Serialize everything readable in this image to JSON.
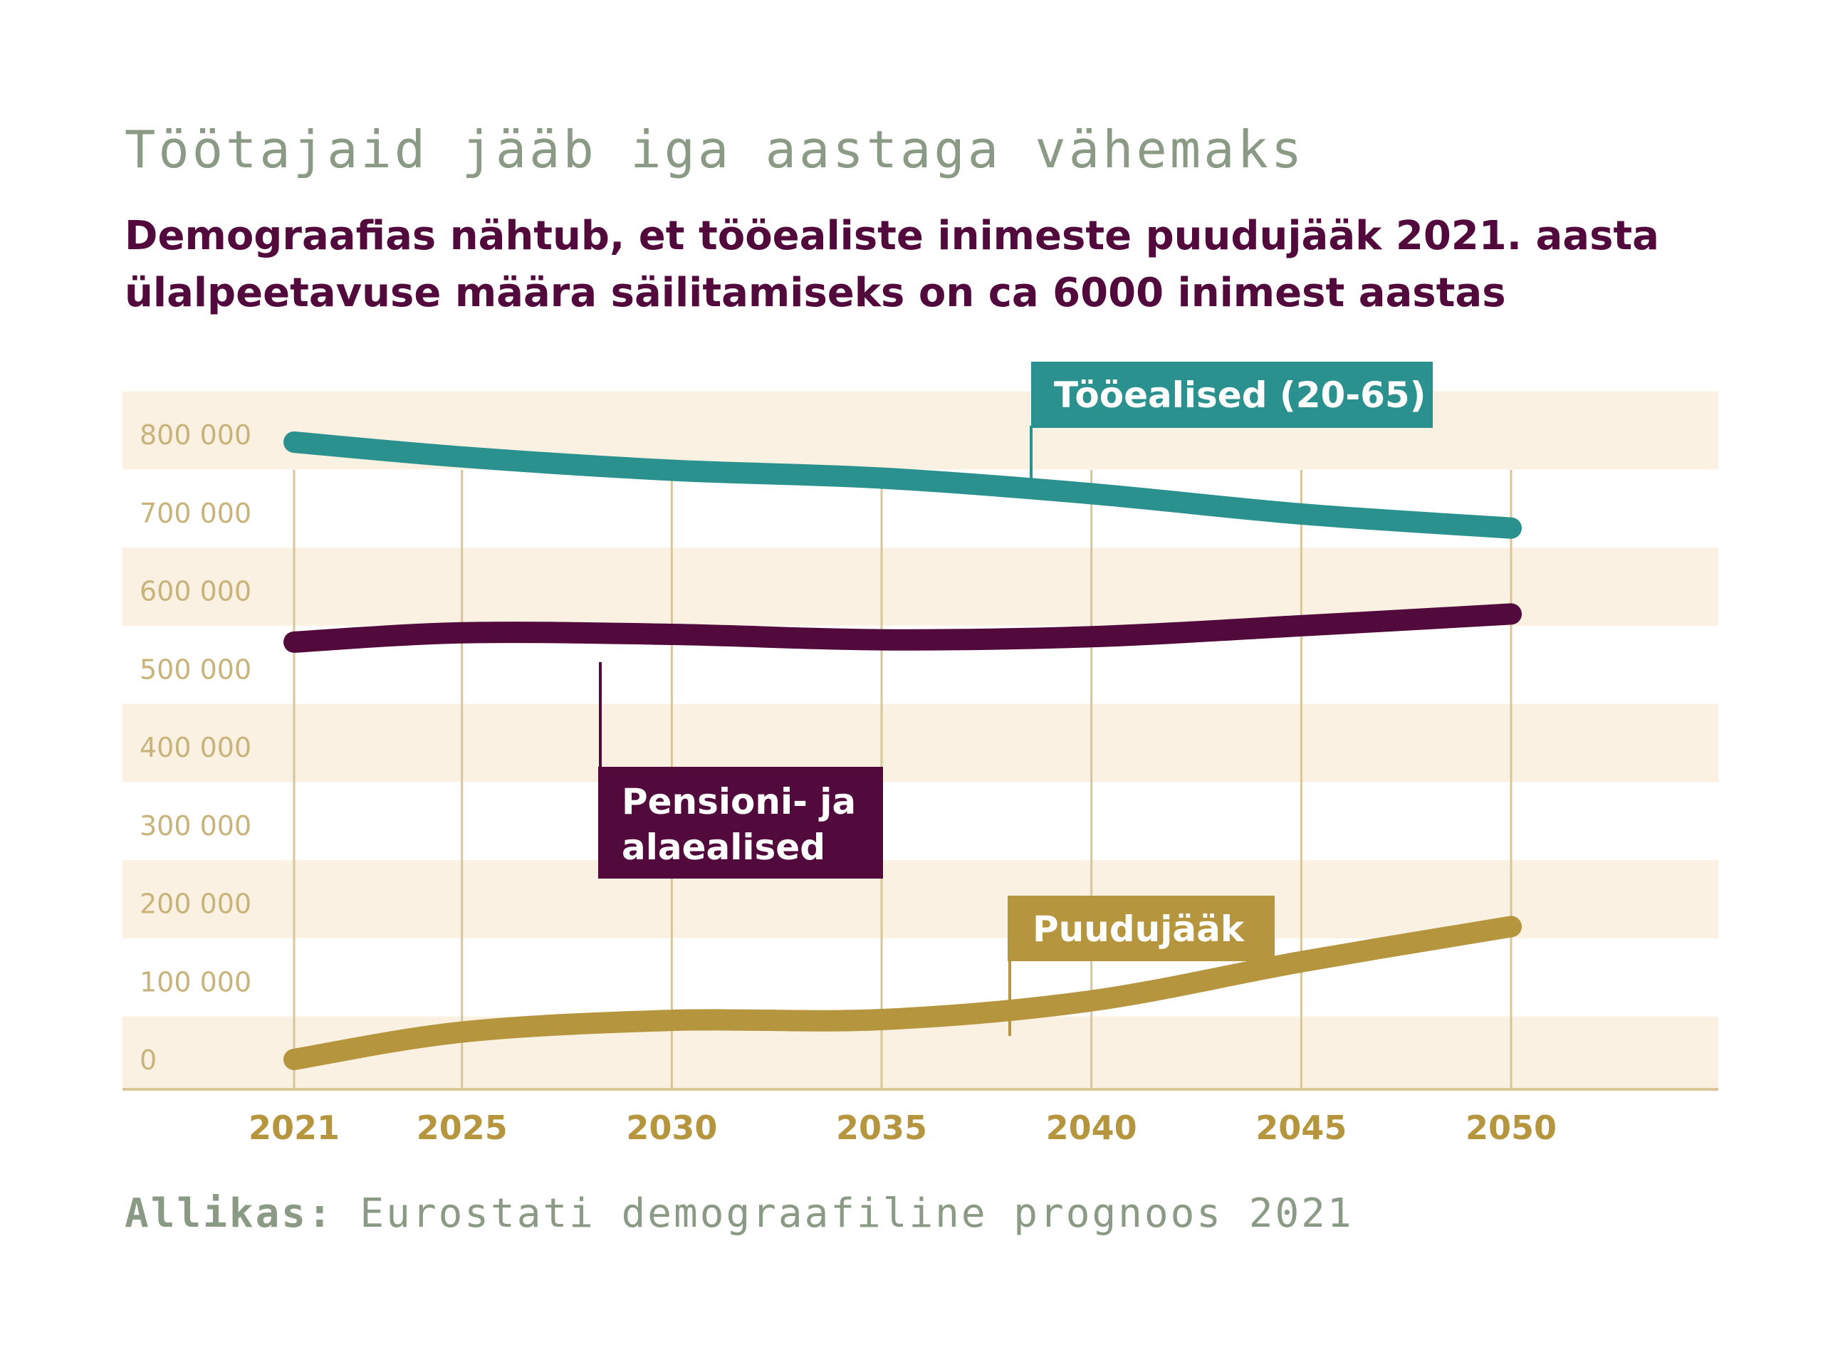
{
  "title": "Töötajaid jääb iga aastaga vähemaks",
  "subtitle": "Demograafias nähtub, et tööealiste inimeste puudujääk 2021. aasta ülalpeetavuse määra säilitamiseks on ca 6000 inimest aastas",
  "source": {
    "label": "Allikas:",
    "text": " Eurostati demograafiline prognoos 2021"
  },
  "colors": {
    "working_age": "#2b918e",
    "dependents": "#520a3c",
    "deficit": "#b5963e",
    "band": "#fbf1e3",
    "grid": "#d8c598",
    "tick_y": "#c8b37a",
    "tick_x": "#b5963e",
    "title": "#8a9a84"
  },
  "chart_data": {
    "type": "line",
    "title": "Töötajaid jääb iga aastaga vähemaks",
    "subtitle": "Demograafias nähtub, et tööealiste inimeste puudujääk 2021. aasta ülalpeetavuse määra säilitamiseks on ca 6000 inimest aastas",
    "xlabel": "",
    "ylabel": "",
    "x_ticks": [
      2021,
      2025,
      2030,
      2035,
      2040,
      2045,
      2050
    ],
    "y_ticks": [
      0,
      100000,
      200000,
      300000,
      400000,
      500000,
      600000,
      700000,
      800000
    ],
    "y_tick_labels": [
      "0",
      "100 000",
      "200 000",
      "300 000",
      "400 000",
      "500 000",
      "600 000",
      "700 000",
      "800 000"
    ],
    "xlim": [
      2017,
      2055.3
    ],
    "ylim": [
      -30000,
      900000
    ],
    "grid": "vertical",
    "series": [
      {
        "name": "Tööealised (20-65)",
        "x": [
          2021,
          2025,
          2030,
          2035,
          2040,
          2045,
          2050
        ],
        "values": [
          790000,
          771000,
          754000,
          744000,
          724000,
          698000,
          680000
        ]
      },
      {
        "name": "Pensioni- ja alaealised",
        "x": [
          2021,
          2025,
          2030,
          2035,
          2040,
          2045,
          2050
        ],
        "values": [
          534000,
          546000,
          544000,
          537000,
          541000,
          555000,
          570000
        ]
      },
      {
        "name": "Puudujääk",
        "x": [
          2021,
          2025,
          2030,
          2035,
          2040,
          2045,
          2050
        ],
        "values": [
          0,
          35000,
          50000,
          51000,
          75000,
          125000,
          170000
        ]
      }
    ]
  }
}
